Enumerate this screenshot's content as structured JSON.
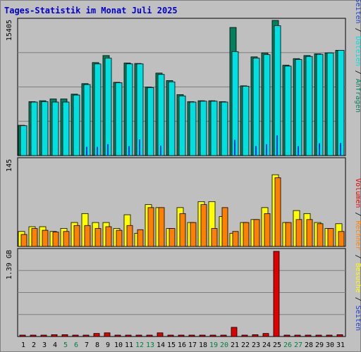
{
  "colors": {
    "background": "#c0c0c0",
    "panel": "#bfbfbf",
    "grid": "#7f7f7f",
    "title": "#0000cc",
    "hits": "#00805c",
    "files": "#00e0e0",
    "pages": "#1a3cd0",
    "visits": "#ffff00",
    "sites": "#ff8000",
    "kbytes": "#e00000",
    "weekend": "#008040",
    "day_label": "#000000"
  },
  "chart_data": [
    {
      "type": "bar",
      "title": "Tages-Statistik im Monat Juli 2025",
      "categories": [
        "1",
        "2",
        "3",
        "4",
        "5",
        "6",
        "7",
        "8",
        "9",
        "10",
        "11",
        "12",
        "13",
        "14",
        "15",
        "16",
        "17",
        "18",
        "19",
        "20",
        "21",
        "22",
        "23",
        "24",
        "25",
        "26",
        "27",
        "28",
        "29",
        "30",
        "31"
      ],
      "weekend_days": [
        "5",
        "6",
        "12",
        "13",
        "19",
        "20",
        "26",
        "27"
      ],
      "ymax_label": "15405",
      "ylim": [
        0,
        15405
      ],
      "grid": true,
      "series": [
        {
          "name": "Anfragen",
          "values": [
            3450,
            6150,
            6250,
            6450,
            6450,
            7000,
            8200,
            10600,
            11400,
            8350,
            10550,
            10500,
            7800,
            9400,
            8550,
            6950,
            6150,
            6250,
            6250,
            6150,
            14600,
            7950,
            11250,
            11700,
            15405,
            10300,
            11050,
            11400,
            11600,
            11700,
            12000
          ]
        },
        {
          "name": "Dateien",
          "values": [
            3400,
            6100,
            6150,
            6100,
            6100,
            6900,
            8100,
            10450,
            11100,
            8300,
            10450,
            10450,
            7750,
            9250,
            8400,
            6800,
            6100,
            6200,
            6200,
            6100,
            11850,
            7900,
            11100,
            11500,
            14800,
            10200,
            10950,
            11300,
            11550,
            11700,
            12000
          ]
        },
        {
          "name": "Seiten",
          "values": [
            0,
            0,
            0,
            0,
            0,
            0,
            1000,
            1000,
            1300,
            0,
            1100,
            1850,
            0,
            1150,
            0,
            0,
            0,
            0,
            0,
            0,
            1800,
            0,
            1100,
            1300,
            2300,
            0,
            1100,
            0,
            1400,
            0,
            1450
          ]
        }
      ]
    },
    {
      "type": "bar",
      "categories": [
        "1",
        "2",
        "3",
        "4",
        "5",
        "6",
        "7",
        "8",
        "9",
        "10",
        "11",
        "12",
        "13",
        "14",
        "15",
        "16",
        "17",
        "18",
        "19",
        "20",
        "21",
        "22",
        "23",
        "24",
        "25",
        "26",
        "27",
        "28",
        "29",
        "30",
        "31"
      ],
      "ymax_label": "145",
      "ylim": [
        0,
        145
      ],
      "grid": false,
      "series": [
        {
          "name": "Besuche",
          "values": [
            25,
            33,
            33,
            25,
            30,
            40,
            55,
            40,
            40,
            30,
            53,
            22,
            70,
            65,
            30,
            65,
            40,
            75,
            75,
            50,
            22,
            40,
            45,
            65,
            120,
            40,
            60,
            55,
            40,
            30,
            38
          ]
        },
        {
          "name": "Rechner",
          "values": [
            20,
            30,
            27,
            24,
            25,
            35,
            35,
            30,
            33,
            27,
            35,
            28,
            65,
            65,
            30,
            55,
            40,
            70,
            30,
            65,
            25,
            40,
            45,
            55,
            115,
            40,
            45,
            45,
            38,
            30,
            25
          ]
        }
      ]
    },
    {
      "type": "bar",
      "categories": [
        "1",
        "2",
        "3",
        "4",
        "5",
        "6",
        "7",
        "8",
        "9",
        "10",
        "11",
        "12",
        "13",
        "14",
        "15",
        "16",
        "17",
        "18",
        "19",
        "20",
        "21",
        "22",
        "23",
        "24",
        "25",
        "26",
        "27",
        "28",
        "29",
        "30",
        "31"
      ],
      "ymax_label": "1.39 GB",
      "ylim": [
        0,
        1.39
      ],
      "grid": true,
      "series": [
        {
          "name": "Volumen",
          "values": [
            0.02,
            0.02,
            0.02,
            0.03,
            0.03,
            0.02,
            0.02,
            0.05,
            0.06,
            0.02,
            0.02,
            0.02,
            0.02,
            0.06,
            0.02,
            0.02,
            0.02,
            0.02,
            0.02,
            0.02,
            0.15,
            0.02,
            0.03,
            0.05,
            1.39,
            0.02,
            0.02,
            0.02,
            0.02,
            0.02,
            0.03
          ]
        }
      ]
    }
  ]
}
